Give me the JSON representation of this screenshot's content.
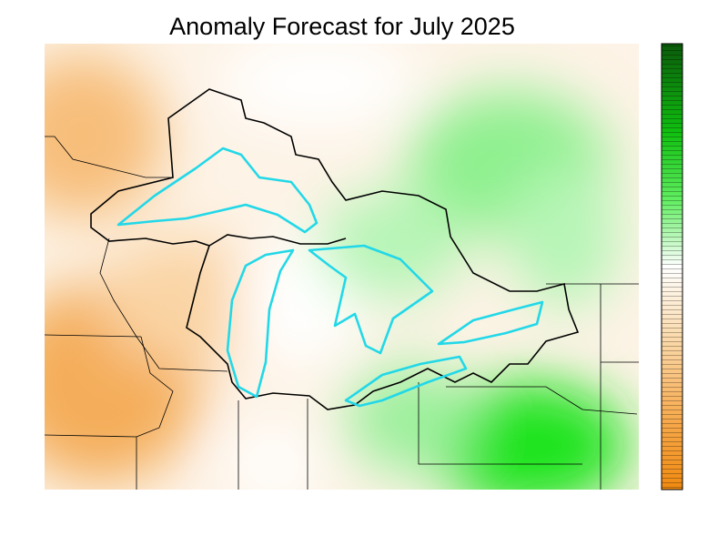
{
  "title": "Anomaly Forecast for July 2025"
}
